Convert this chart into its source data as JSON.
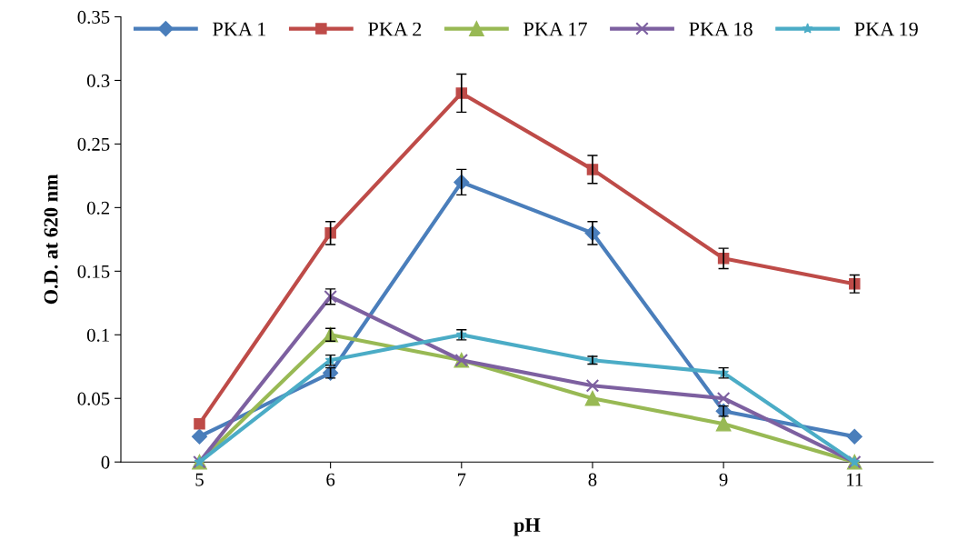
{
  "chart_data": {
    "type": "line",
    "xlabel": "pH",
    "ylabel": "O.D. at 620 nm",
    "categories": [
      "5",
      "6",
      "7",
      "8",
      "9",
      "11"
    ],
    "ylim": [
      0,
      0.35
    ],
    "yticks": [
      {
        "value": 0,
        "label": "0"
      },
      0.05,
      {
        "value": 0.1,
        "label": "0.1"
      },
      0.15,
      {
        "value": 0.2,
        "label": "0.2"
      },
      0.25,
      {
        "value": 0.3,
        "label": "0.3"
      },
      0.35
    ],
    "grid": false,
    "legend": "top",
    "line_style": "solid",
    "series": [
      {
        "name": "PKA 1",
        "color": "#4a7ebb",
        "marker": "diamond",
        "values": [
          0.02,
          0.07,
          0.22,
          0.18,
          0.04,
          0.02
        ],
        "errors": [
          null,
          0.004,
          0.01,
          0.009,
          0.004,
          null
        ]
      },
      {
        "name": "PKA 2",
        "color": "#be4b48",
        "marker": "square",
        "values": [
          0.03,
          0.18,
          0.29,
          0.23,
          0.16,
          0.14
        ],
        "errors": [
          null,
          0.009,
          0.015,
          0.011,
          0.008,
          0.007
        ]
      },
      {
        "name": "PKA 17",
        "color": "#98b954",
        "marker": "triangle",
        "values": [
          0,
          0.1,
          0.08,
          0.05,
          0.03,
          0
        ],
        "errors": [
          null,
          0.005,
          null,
          null,
          null,
          null
        ]
      },
      {
        "name": "PKA 18",
        "color": "#7d60a0",
        "marker": "cross",
        "values": [
          0,
          0.13,
          0.08,
          0.06,
          0.05,
          0
        ],
        "errors": [
          null,
          0.006,
          null,
          null,
          null,
          null
        ]
      },
      {
        "name": "PKA 19",
        "color": "#4bacc6",
        "marker": "star",
        "values": [
          0,
          0.08,
          0.1,
          0.08,
          0.07,
          0
        ],
        "errors": [
          null,
          0.004,
          0.004,
          0.003,
          0.004,
          null
        ]
      }
    ]
  }
}
